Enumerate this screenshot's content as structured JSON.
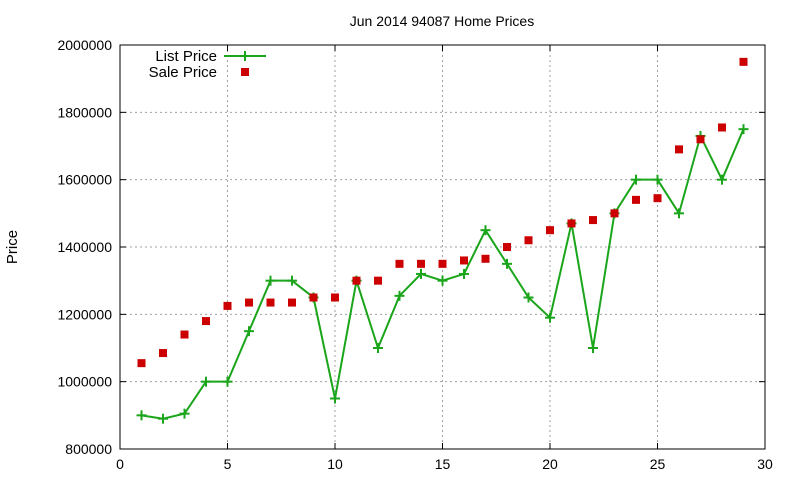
{
  "chart_data": {
    "type": "line",
    "title": "Jun 2014 94087 Home Prices",
    "xlabel": "",
    "ylabel": "Price",
    "xlim": [
      0,
      30
    ],
    "ylim": [
      800000,
      2000000
    ],
    "xticks": [
      "0",
      "5",
      "10",
      "15",
      "20",
      "25",
      "30"
    ],
    "yticks": [
      "800000",
      "1000000",
      "1200000",
      "1400000",
      "1600000",
      "1800000",
      "2000000"
    ],
    "grid": true,
    "legend_position": "top-left",
    "colors": {
      "list": "#1aa51a",
      "sale": "#cc0000"
    },
    "x": [
      1,
      2,
      3,
      4,
      5,
      6,
      7,
      8,
      9,
      10,
      11,
      12,
      13,
      14,
      15,
      16,
      17,
      18,
      19,
      20,
      21,
      22,
      23,
      24,
      25,
      26,
      27,
      28,
      29
    ],
    "series": [
      {
        "name": "List Price",
        "style": "linespoints",
        "values": [
          900000,
          890000,
          905000,
          1000000,
          1000000,
          1150000,
          1300000,
          1300000,
          1250000,
          950000,
          1300000,
          1100000,
          1255000,
          1320000,
          1300000,
          1320000,
          1450000,
          1350000,
          1250000,
          1190000,
          1470000,
          1100000,
          1500000,
          1600000,
          1600000,
          1500000,
          1730000,
          1600000,
          1750000
        ]
      },
      {
        "name": "Sale Price",
        "style": "points",
        "values": [
          1055000,
          1085000,
          1140000,
          1180000,
          1225000,
          1235000,
          1235000,
          1235000,
          1250000,
          1250000,
          1300000,
          1300000,
          1350000,
          1350000,
          1350000,
          1360000,
          1365000,
          1400000,
          1420000,
          1450000,
          1470000,
          1480000,
          1500000,
          1540000,
          1545000,
          1690000,
          1720000,
          1755000,
          1950000
        ]
      }
    ]
  }
}
